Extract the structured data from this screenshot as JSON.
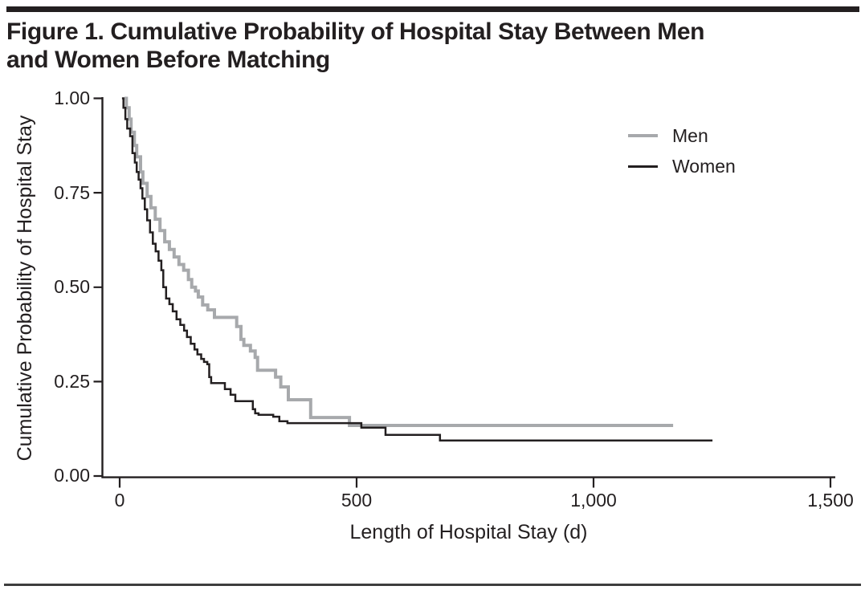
{
  "header": {
    "title_lines": [
      "Figure 1. Cumulative Probability of Hospital Stay Between Men",
      "and Women Before Matching"
    ]
  },
  "chart_data": {
    "type": "line",
    "subtype": "kaplan-meier-step",
    "title": "Figure 1. Cumulative Probability of Hospital Stay Between Men and Women Before Matching",
    "xlabel": "Length of Hospital Stay (d)",
    "ylabel": "Cumulative Probability of Hospital Stay",
    "xlim": [
      0,
      1500
    ],
    "ylim": [
      0,
      1
    ],
    "x_ticks": [
      0,
      500,
      1000,
      1500
    ],
    "x_tick_labels": [
      "0",
      "500",
      "1,000",
      "1,500"
    ],
    "y_ticks": [
      0,
      0.25,
      0.5,
      0.75,
      1
    ],
    "y_tick_labels": [
      "0.00",
      "0.25",
      "0.50",
      "0.75",
      "1.00"
    ],
    "grid": false,
    "legend": {
      "position": "upper-right",
      "entries": [
        {
          "label": "Men",
          "color": "#a7a9ac"
        },
        {
          "label": "Women",
          "color": "#231f20"
        }
      ]
    },
    "colors": {
      "axis": "#231f20",
      "text": "#231f20",
      "background": "#ffffff"
    },
    "series": [
      {
        "name": "Men",
        "color": "#a7a9ac",
        "stroke_width": 4,
        "points": [
          [
            10,
            1.0
          ],
          [
            14,
            0.975
          ],
          [
            20,
            0.945
          ],
          [
            24,
            0.91
          ],
          [
            31,
            0.875
          ],
          [
            36,
            0.845
          ],
          [
            44,
            0.805
          ],
          [
            49,
            0.775
          ],
          [
            58,
            0.74
          ],
          [
            66,
            0.71
          ],
          [
            75,
            0.68
          ],
          [
            85,
            0.65
          ],
          [
            95,
            0.62
          ],
          [
            105,
            0.6
          ],
          [
            115,
            0.58
          ],
          [
            125,
            0.56
          ],
          [
            135,
            0.545
          ],
          [
            145,
            0.52
          ],
          [
            152,
            0.5
          ],
          [
            160,
            0.49
          ],
          [
            166,
            0.474
          ],
          [
            175,
            0.453
          ],
          [
            186,
            0.44
          ],
          [
            200,
            0.42
          ],
          [
            247,
            0.396
          ],
          [
            256,
            0.362
          ],
          [
            262,
            0.346
          ],
          [
            276,
            0.331
          ],
          [
            286,
            0.314
          ],
          [
            291,
            0.28
          ],
          [
            329,
            0.262
          ],
          [
            340,
            0.236
          ],
          [
            356,
            0.202
          ],
          [
            403,
            0.155
          ],
          [
            485,
            0.134
          ],
          [
            1168,
            0.134
          ]
        ]
      },
      {
        "name": "Women",
        "color": "#231f20",
        "stroke_width": 2.5,
        "points": [
          [
            5,
            1.0
          ],
          [
            8,
            0.975
          ],
          [
            12,
            0.945
          ],
          [
            16,
            0.92
          ],
          [
            22,
            0.9
          ],
          [
            27,
            0.855
          ],
          [
            32,
            0.83
          ],
          [
            36,
            0.805
          ],
          [
            40,
            0.785
          ],
          [
            44,
            0.762
          ],
          [
            48,
            0.735
          ],
          [
            53,
            0.706
          ],
          [
            58,
            0.677
          ],
          [
            64,
            0.645
          ],
          [
            70,
            0.615
          ],
          [
            76,
            0.595
          ],
          [
            82,
            0.57
          ],
          [
            88,
            0.545
          ],
          [
            92,
            0.5
          ],
          [
            98,
            0.47
          ],
          [
            105,
            0.455
          ],
          [
            112,
            0.436
          ],
          [
            120,
            0.415
          ],
          [
            128,
            0.4
          ],
          [
            136,
            0.385
          ],
          [
            142,
            0.368
          ],
          [
            150,
            0.35
          ],
          [
            158,
            0.335
          ],
          [
            164,
            0.322
          ],
          [
            172,
            0.31
          ],
          [
            178,
            0.302
          ],
          [
            185,
            0.296
          ],
          [
            189,
            0.262
          ],
          [
            193,
            0.246
          ],
          [
            222,
            0.23
          ],
          [
            234,
            0.215
          ],
          [
            244,
            0.198
          ],
          [
            281,
            0.177
          ],
          [
            286,
            0.166
          ],
          [
            293,
            0.162
          ],
          [
            324,
            0.157
          ],
          [
            337,
            0.145
          ],
          [
            354,
            0.14
          ],
          [
            510,
            0.128
          ],
          [
            561,
            0.109
          ],
          [
            676,
            0.094
          ],
          [
            1251,
            0.094
          ]
        ]
      }
    ]
  }
}
